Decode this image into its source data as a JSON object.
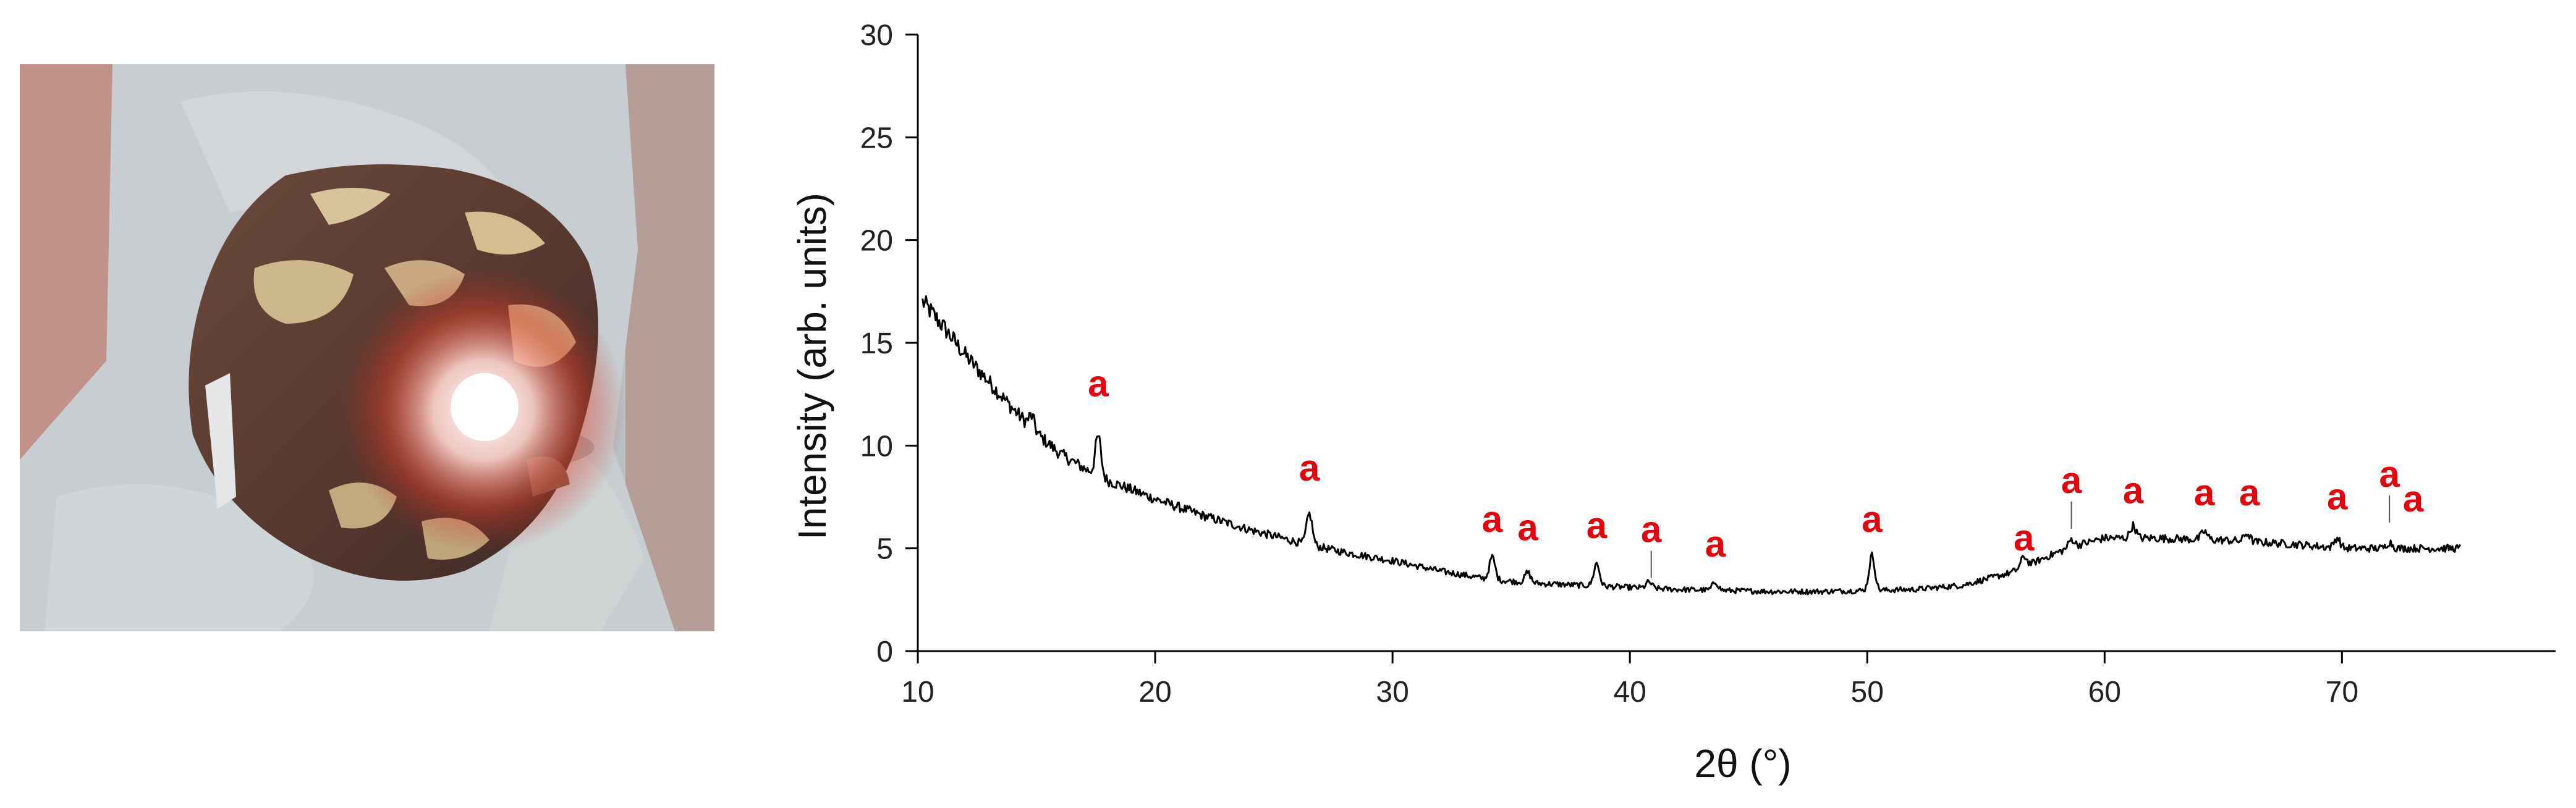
{
  "figure": {
    "photo": {
      "description_icon": "sample-photo"
    },
    "colors": {
      "trace": "#000000",
      "peak_label": "#e8000b",
      "axis": "#000000"
    }
  },
  "chart_data": {
    "type": "line",
    "title": "",
    "xlabel": "2θ (°)",
    "ylabel": "Intensity (arb. units)",
    "xlim": [
      10,
      79
    ],
    "ylim": [
      0,
      30
    ],
    "x_ticks": [
      10,
      20,
      30,
      40,
      50,
      60,
      70
    ],
    "y_ticks": [
      0,
      5,
      10,
      15,
      20,
      25,
      30
    ],
    "grid": false,
    "legend": "none",
    "series": [
      {
        "background": [
          [
            10.2,
            17.0
          ],
          [
            11,
            15.9
          ],
          [
            12,
            14.4
          ],
          [
            13,
            13.1
          ],
          [
            14,
            11.8
          ],
          [
            15,
            10.6
          ],
          [
            16,
            9.6
          ],
          [
            17,
            8.9
          ],
          [
            18,
            8.3
          ],
          [
            20,
            7.4
          ],
          [
            22,
            6.6
          ],
          [
            24,
            5.9
          ],
          [
            26,
            5.3
          ],
          [
            28,
            4.8
          ],
          [
            30,
            4.4
          ],
          [
            32,
            3.9
          ],
          [
            34,
            3.5
          ],
          [
            36,
            3.3
          ],
          [
            38,
            3.2
          ],
          [
            40,
            3.1
          ],
          [
            42,
            3.0
          ],
          [
            44,
            2.95
          ],
          [
            46,
            2.9
          ],
          [
            48,
            2.9
          ],
          [
            50,
            2.95
          ],
          [
            52,
            3.0
          ],
          [
            54,
            3.2
          ],
          [
            56,
            3.8
          ],
          [
            57,
            4.3
          ],
          [
            58,
            4.8
          ],
          [
            59,
            5.2
          ],
          [
            60,
            5.5
          ],
          [
            62,
            5.5
          ],
          [
            65,
            5.4
          ],
          [
            68,
            5.2
          ],
          [
            70,
            5.0
          ],
          [
            72,
            5.0
          ],
          [
            75,
            5.0
          ]
        ],
        "peaks": [
          {
            "x": 14.8,
            "height": 0.6
          },
          {
            "x": 17.6,
            "height": 1.9
          },
          {
            "x": 26.5,
            "height": 1.5
          },
          {
            "x": 34.2,
            "height": 1.1
          },
          {
            "x": 35.7,
            "height": 0.5
          },
          {
            "x": 38.6,
            "height": 1.1
          },
          {
            "x": 40.8,
            "height": 0.3
          },
          {
            "x": 43.6,
            "height": 0.4
          },
          {
            "x": 50.2,
            "height": 1.7
          },
          {
            "x": 56.6,
            "height": 0.5
          },
          {
            "x": 58.6,
            "height": 0.4
          },
          {
            "x": 61.2,
            "height": 0.6
          },
          {
            "x": 64.2,
            "height": 0.4
          },
          {
            "x": 66.0,
            "height": 0.4
          },
          {
            "x": 69.8,
            "height": 0.5
          },
          {
            "x": 72.0,
            "height": 0.3
          }
        ]
      }
    ],
    "annotations": [
      {
        "text": "a",
        "x": 17.6,
        "y": 12.4,
        "marker": false
      },
      {
        "text": "a",
        "x": 26.5,
        "y": 8.3,
        "marker": false
      },
      {
        "text": "a",
        "x": 34.2,
        "y": 5.8,
        "marker": false
      },
      {
        "text": "a",
        "x": 35.7,
        "y": 5.4,
        "marker": false
      },
      {
        "text": "a",
        "x": 38.6,
        "y": 5.5,
        "marker": false
      },
      {
        "text": "a",
        "x": 40.9,
        "y": 5.3,
        "marker": true
      },
      {
        "text": "a",
        "x": 43.6,
        "y": 4.6,
        "marker": false
      },
      {
        "text": "a",
        "x": 50.2,
        "y": 5.8,
        "marker": false
      },
      {
        "text": "a",
        "x": 56.6,
        "y": 4.9,
        "marker": false
      },
      {
        "text": "a",
        "x": 58.6,
        "y": 7.7,
        "marker": true
      },
      {
        "text": "a",
        "x": 61.2,
        "y": 7.2,
        "marker": false
      },
      {
        "text": "a",
        "x": 64.2,
        "y": 7.1,
        "marker": false
      },
      {
        "text": "a",
        "x": 66.1,
        "y": 7.1,
        "marker": false
      },
      {
        "text": "a",
        "x": 69.8,
        "y": 6.9,
        "marker": false
      },
      {
        "text": "a",
        "x": 72.0,
        "y": 8.0,
        "marker": true
      },
      {
        "text": "a",
        "x": 73.0,
        "y": 6.8,
        "marker": false
      }
    ]
  }
}
